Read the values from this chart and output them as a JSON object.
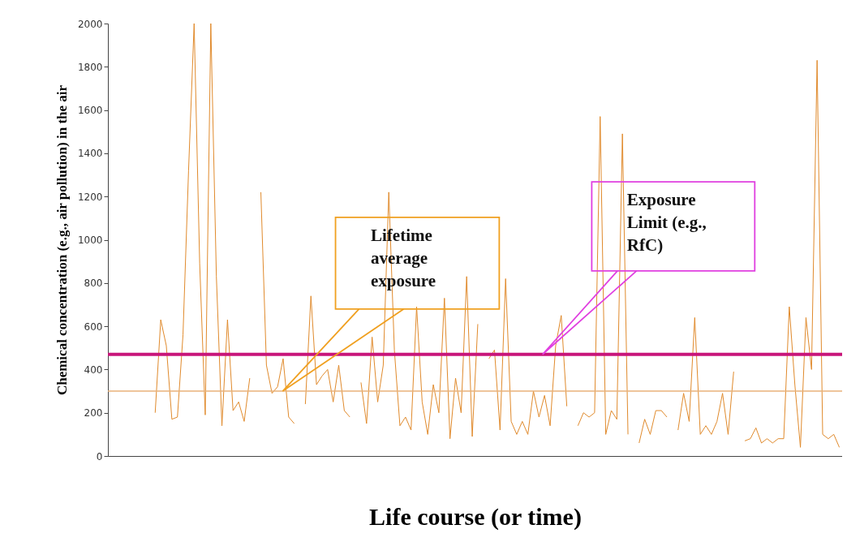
{
  "chart_data": {
    "type": "line",
    "xlabel": "Life course (or time)",
    "ylabel": "Chemical concentration (e.g., air pollution) in the air",
    "tick_labels": "y",
    "categories": [
      null,
      null,
      null,
      null,
      null,
      null,
      null,
      null,
      null,
      null,
      null,
      null,
      null,
      null,
      null,
      null,
      null,
      null,
      null,
      null,
      null,
      null,
      null,
      null,
      null,
      null,
      null,
      null,
      null,
      null,
      null,
      null,
      null,
      null,
      null,
      null,
      null,
      null,
      null,
      null,
      null,
      null,
      null,
      null,
      null,
      null,
      null,
      null,
      null,
      null,
      null,
      null,
      null,
      null,
      null,
      null,
      null,
      null,
      null,
      null,
      null,
      null,
      null,
      null,
      null,
      null,
      null,
      null,
      null,
      null,
      null,
      null,
      null,
      null,
      null,
      null,
      null,
      null,
      null,
      null,
      null,
      null,
      null,
      null,
      null,
      null,
      null,
      null,
      null,
      null,
      null,
      null,
      null,
      null,
      null,
      null,
      null,
      null,
      null,
      null,
      null,
      null,
      null,
      null,
      null,
      null,
      null,
      null,
      null,
      null,
      null,
      null,
      null,
      null,
      null,
      null,
      null,
      null,
      null,
      null,
      null,
      null,
      null,
      null,
      null,
      null,
      null,
      null,
      null,
      null,
      null,
      null
    ],
    "ylim": [
      0,
      2000
    ],
    "yticks": [
      0,
      200,
      400,
      600,
      800,
      1000,
      1200,
      1400,
      1600,
      1800,
      2000
    ],
    "grid": false,
    "marker": "none",
    "line_style": "solid",
    "series": [
      {
        "color": "#e08a2c",
        "values": [
          null,
          null,
          null,
          null,
          null,
          null,
          null,
          null,
          200,
          630,
          510,
          170,
          180,
          560,
          1320,
          2000,
          890,
          190,
          2000,
          830,
          140,
          630,
          210,
          250,
          160,
          360,
          null,
          1220,
          420,
          290,
          320,
          450,
          180,
          150,
          null,
          240,
          740,
          330,
          370,
          400,
          250,
          420,
          210,
          180,
          null,
          340,
          150,
          550,
          250,
          420,
          1220,
          490,
          140,
          180,
          120,
          690,
          250,
          100,
          330,
          200,
          730,
          80,
          360,
          200,
          830,
          90,
          610,
          null,
          450,
          490,
          120,
          820,
          160,
          100,
          160,
          100,
          300,
          180,
          280,
          140,
          510,
          650,
          230,
          null,
          140,
          200,
          180,
          200,
          1570,
          100,
          210,
          170,
          1490,
          100,
          null,
          60,
          170,
          100,
          210,
          210,
          180,
          null,
          120,
          290,
          160,
          640,
          100,
          140,
          100,
          160,
          290,
          100,
          390,
          null,
          70,
          80,
          130,
          60,
          80,
          60,
          80,
          80,
          690,
          330,
          40,
          640,
          400,
          1830,
          100,
          80,
          100,
          40
        ]
      }
    ],
    "ref_lines": [
      {
        "axis": "y",
        "value": 470,
        "color": "#c8157a"
      },
      {
        "axis": "y",
        "value": 300,
        "color": "#e8b27a"
      }
    ],
    "annotations": [
      "Lifetime\naverage\nexposure",
      "Exposure\nLimit (e.g.,\nRfC)"
    ]
  }
}
